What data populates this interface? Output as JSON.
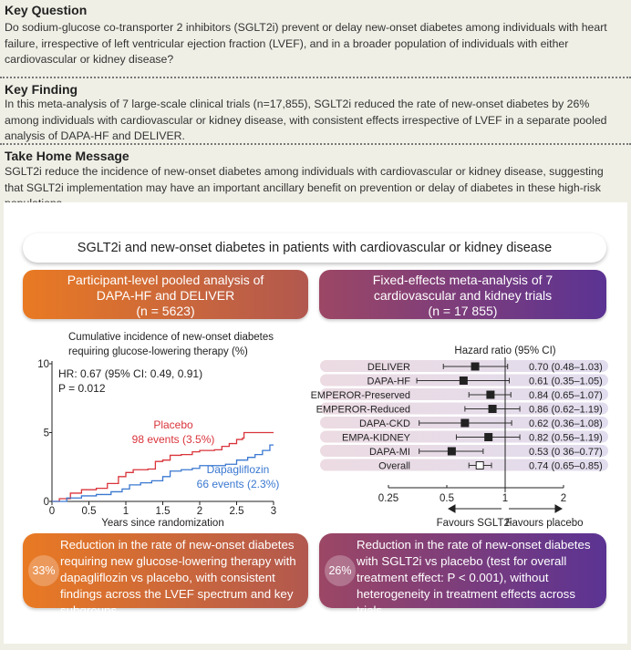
{
  "key_question": {
    "title": "Key Question",
    "text": "Do sodium-glucose co-transporter 2 inhibitors (SGLT2i) prevent or delay new-onset diabetes among individuals with heart failure, irrespective of left ventricular ejection fraction (LVEF), and in a broader population of individuals with either cardiovascular or kidney disease?"
  },
  "key_finding": {
    "title": "Key Finding",
    "text": "In this meta-analysis of 7 large-scale clinical trials (n=17,855), SGLT2i reduced the rate of new-onset diabetes by 26% among individuals with cardiovascular or kidney disease, with consistent effects irrespective of LVEF in a separate pooled analysis of DAPA-HF and DELIVER."
  },
  "take_home": {
    "title": "Take Home Message",
    "text": "SGLT2i reduce the incidence of new-onset diabetes among individuals with cardiovascular or kidney disease, suggesting that SGLT2i implementation may have an important ancillary benefit on prevention or delay of diabetes in these high-risk populations."
  },
  "abstract": {
    "title": "SGLT2i and new-onset diabetes in patients with cardiovascular or kidney disease",
    "left_header": {
      "line1": "Participant-level pooled analysis of",
      "line2": "DAPA-HF and DELIVER",
      "line3": "(n = 5623)"
    },
    "right_header": {
      "line1": "Fixed-effects meta-analysis of 7",
      "line2": "cardiovascular and kidney trials",
      "line3": "(n = 17 855)"
    },
    "left_footer": {
      "badge": "33%",
      "text": "Reduction in the rate of new-onset diabetes requiring new glucose-lowering therapy with dapagliflozin vs placebo, with consistent findings across the LVEF spectrum and key subgroups"
    },
    "right_footer": {
      "badge": "26%",
      "text": "Reduction in the rate of new-onset diabetes with SGLT2i vs placebo (test for overall treatment effect: P < 0.001), without heterogeneity in treatment effects across trials"
    }
  },
  "colors": {
    "placebo": "#d9343b",
    "dapagliflozin": "#3a78d0",
    "orange": "#e97a23",
    "purple": "#5b3393"
  },
  "chart_data": [
    {
      "type": "line",
      "title": "Cumulative incidence of new-onset diabetes requiring glucose-lowering therapy (%)",
      "title_line1": "Cumulative incidence of new-onset diabetes",
      "title_line2": "requiring glucose-lowering therapy (%)",
      "xlabel": "Years since randomization",
      "xlim": [
        0,
        3
      ],
      "ylim": [
        0,
        10
      ],
      "xticks": [
        "0",
        "0.5",
        "1",
        "1.5",
        "2",
        "2.5",
        "3"
      ],
      "yticks": [
        "0",
        "5",
        "10"
      ],
      "annotation1": "HR: 0.67 (95% CI: 0.49, 0.91)",
      "annotation2": "P = 0.012",
      "series": [
        {
          "name": "Placebo",
          "label2": "98 events (3.5%)",
          "x": [
            0,
            0.1,
            0.25,
            0.4,
            0.6,
            0.75,
            0.9,
            1.0,
            1.1,
            1.3,
            1.4,
            1.5,
            1.6,
            1.75,
            1.9,
            2.0,
            2.2,
            2.3,
            2.4,
            2.5,
            2.58,
            2.6,
            3.0
          ],
          "y": [
            0,
            0.2,
            0.6,
            0.85,
            0.95,
            1.3,
            1.8,
            2.1,
            2.3,
            2.35,
            2.9,
            3.0,
            3.35,
            3.4,
            3.6,
            3.7,
            3.75,
            4.0,
            4.2,
            4.5,
            4.6,
            5.0,
            5.0
          ]
        },
        {
          "name": "Dapagliflozin",
          "label2": "66 events (2.3%)",
          "x": [
            0,
            0.2,
            0.4,
            0.6,
            0.8,
            0.95,
            1.05,
            1.2,
            1.35,
            1.5,
            1.6,
            1.75,
            1.9,
            2.0,
            2.2,
            2.35,
            2.5,
            2.65,
            2.75,
            2.85,
            2.95,
            3.0
          ],
          "y": [
            0,
            0.25,
            0.4,
            0.5,
            0.7,
            0.9,
            1.2,
            1.35,
            1.5,
            1.8,
            2.2,
            2.3,
            2.4,
            2.6,
            2.6,
            2.7,
            3.0,
            3.2,
            3.4,
            3.7,
            4.1,
            4.1
          ]
        }
      ]
    },
    {
      "type": "forest",
      "title": "Hazard ratio (95% CI)",
      "xscale": "log",
      "xlim": [
        0.25,
        2
      ],
      "xticks": [
        "0.25",
        "0.5",
        "1",
        "2"
      ],
      "left_label": "Favours SGLT2i",
      "right_label": "Favours placebo",
      "rows": [
        {
          "name": "DELIVER",
          "hr": 0.7,
          "lo": 0.48,
          "hi": 1.03,
          "text": "0.70 (0.48–1.03)"
        },
        {
          "name": "DAPA-HF",
          "hr": 0.61,
          "lo": 0.35,
          "hi": 1.05,
          "text": "0.61 (0.35–1.05)"
        },
        {
          "name": "EMPEROR-Preserved",
          "hr": 0.84,
          "lo": 0.65,
          "hi": 1.07,
          "text": "0.84 (0.65–1.07)"
        },
        {
          "name": "EMPEROR-Reduced",
          "hr": 0.86,
          "lo": 0.62,
          "hi": 1.19,
          "text": "0.86 (0.62–1.19)"
        },
        {
          "name": "DAPA-CKD",
          "hr": 0.62,
          "lo": 0.36,
          "hi": 1.08,
          "text": "0.62 (0.36–1.08)"
        },
        {
          "name": "EMPA-KIDNEY",
          "hr": 0.82,
          "lo": 0.56,
          "hi": 1.19,
          "text": "0.82 (0.56–1.19)"
        },
        {
          "name": "DAPA-MI",
          "hr": 0.53,
          "lo": 0.36,
          "hi": 0.77,
          "text": "0.53 (0 36–0.77)"
        },
        {
          "name": "Overall",
          "hr": 0.74,
          "lo": 0.65,
          "hi": 0.85,
          "text": "0.74 (0.65–0.85)",
          "overall": true
        }
      ]
    }
  ]
}
